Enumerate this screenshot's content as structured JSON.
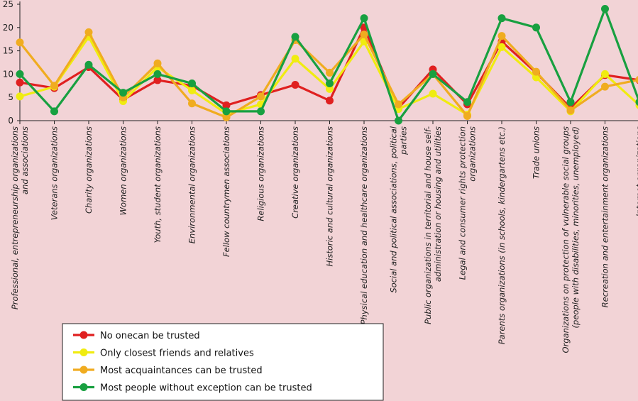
{
  "chart_data": {
    "type": "line",
    "title": "",
    "xlabel": "",
    "ylabel": "",
    "ylim": [
      0,
      25
    ],
    "yticks": [
      0,
      5,
      10,
      15,
      20,
      25
    ],
    "categories": [
      [
        "Professional, entrepreneurship organizations",
        "and associations"
      ],
      [
        "Veterans organizations"
      ],
      [
        "Charity organizations"
      ],
      [
        "Women organizations"
      ],
      [
        "Youth, student organizations"
      ],
      [
        "Environmental organizations"
      ],
      [
        "Fellow countrymen associations"
      ],
      [
        "Religious organizations"
      ],
      [
        "Creative organizations"
      ],
      [
        "Historic and cultural organizations"
      ],
      [
        "Physical education and healthcare organizations"
      ],
      [
        "Social and political associations, political",
        "parties"
      ],
      [
        "Public organizations in territorial and house self-",
        "administration or housing and utilities"
      ],
      [
        "Legal and consumer rights protection",
        "organizations"
      ],
      [
        "Parents organizations (in schools, kindergartens etc.)"
      ],
      [
        "Trade unions"
      ],
      [
        "Organizations on protection of vulnerable social groups",
        "(people with disabilities, minorities, unemployed)"
      ],
      [
        "Recreation and entertainment organizations"
      ],
      [
        "Internet organizations"
      ]
    ],
    "series": [
      {
        "name": "No onecan be trusted",
        "color": "#e02020",
        "values": [
          8.2,
          7.0,
          11.5,
          4.5,
          8.7,
          7.5,
          3.3,
          5.5,
          7.7,
          4.3,
          20.0,
          2.7,
          11.0,
          3.5,
          17.0,
          10.3,
          2.7,
          9.8,
          8.7
        ]
      },
      {
        "name": "Only closest friends and relatives",
        "color": "#f0ec10",
        "values": [
          5.2,
          7.3,
          18.0,
          4.2,
          11.5,
          6.5,
          1.5,
          3.5,
          13.3,
          6.8,
          17.0,
          2.5,
          5.8,
          1.3,
          15.8,
          9.3,
          2.0,
          10.0,
          3.3
        ]
      },
      {
        "name": "Most acquaintances can be trusted",
        "color": "#f0ac20",
        "values": [
          16.8,
          7.5,
          19.0,
          5.0,
          12.3,
          3.7,
          0.7,
          5.2,
          17.3,
          10.3,
          18.5,
          3.5,
          10.0,
          1.0,
          18.2,
          10.5,
          2.2,
          7.3,
          8.8
        ]
      },
      {
        "name": "Most people without exception can be trusted",
        "color": "#18a040",
        "values": [
          10.0,
          2.0,
          12.0,
          6.0,
          10.0,
          8.0,
          2.0,
          2.0,
          18.0,
          8.0,
          22.0,
          0.0,
          10.0,
          4.0,
          22.0,
          20.0,
          4.0,
          24.0,
          4.0
        ]
      }
    ],
    "legend_position": "bottom-center",
    "grid": false
  }
}
